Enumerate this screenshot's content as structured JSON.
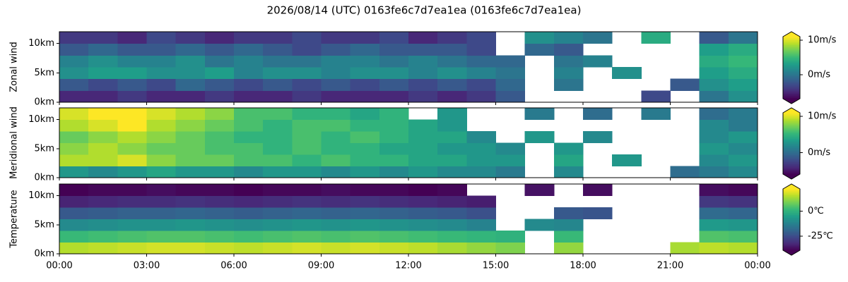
{
  "title": "2026/08/14 (UTC) 0163fe6c7d7ea1ea (0163fe6c7d7ea1ea)",
  "chart_data": [
    {
      "type": "heatmap",
      "ylabel": "Zonal wind",
      "colormap": "viridis",
      "extend": "both",
      "ylim": [
        0,
        12
      ],
      "yticks": [
        {
          "value": 0,
          "label": "0km"
        },
        {
          "value": 5,
          "label": "5km"
        },
        {
          "value": 10,
          "label": "10km"
        }
      ],
      "clim": [
        -7,
        11
      ],
      "cbar_ticks": [
        {
          "value": 0,
          "label": "0m/s"
        },
        {
          "value": 10,
          "label": "10m/s"
        }
      ],
      "values": [
        [
          -5,
          -5,
          -4,
          -5,
          -5,
          -4,
          -5,
          -5,
          -4,
          -5,
          -5,
          -5,
          -4,
          -5,
          -4,
          -2,
          null,
          null,
          null,
          null,
          -3,
          null,
          0,
          2
        ],
        [
          -2,
          -3,
          -2,
          -3,
          -1,
          -2,
          -3,
          -2,
          -3,
          -2,
          -3,
          -2,
          -3,
          -2,
          -3,
          -1,
          null,
          0,
          null,
          null,
          null,
          -2,
          2,
          3
        ],
        [
          2,
          3,
          3,
          2,
          2,
          3,
          1,
          2,
          2,
          1,
          2,
          2,
          1,
          2,
          1,
          0,
          null,
          1,
          null,
          2,
          null,
          null,
          3,
          4
        ],
        [
          1,
          2,
          1,
          1,
          2,
          0,
          1,
          0,
          0,
          1,
          1,
          0,
          1,
          0,
          -1,
          -1,
          null,
          0,
          1,
          null,
          null,
          null,
          4,
          5
        ],
        [
          -2,
          -1,
          -2,
          -2,
          -1,
          -2,
          -1,
          -2,
          -3,
          -2,
          -1,
          -2,
          -2,
          -2,
          -3,
          null,
          -1,
          -2,
          null,
          null,
          null,
          null,
          3,
          4
        ],
        [
          -4,
          -4,
          -5,
          -3,
          -4,
          -5,
          -4,
          -4,
          -3,
          -4,
          -4,
          -3,
          -5,
          -4,
          -3,
          null,
          2,
          1,
          0,
          null,
          4,
          null,
          -2,
          0
        ]
      ]
    },
    {
      "type": "heatmap",
      "ylabel": "Meridional wind",
      "colormap": "viridis",
      "extend": "both",
      "ylim": [
        0,
        12
      ],
      "yticks": [
        {
          "value": 0,
          "label": "0km"
        },
        {
          "value": 5,
          "label": "5km"
        },
        {
          "value": 10,
          "label": "10km"
        }
      ],
      "clim": [
        -6,
        11
      ],
      "cbar_ticks": [
        {
          "value": 0,
          "label": "0m/s"
        },
        {
          "value": 10,
          "label": "10m/s"
        }
      ],
      "values": [
        [
          3,
          2,
          3,
          4,
          3,
          3,
          2,
          3,
          3,
          2,
          3,
          2,
          3,
          2,
          2,
          1,
          null,
          2,
          null,
          null,
          null,
          0,
          1,
          2
        ],
        [
          9,
          9,
          10,
          8,
          7,
          7,
          6,
          6,
          5,
          6,
          5,
          5,
          4,
          4,
          3,
          3,
          null,
          4,
          null,
          3,
          null,
          null,
          2,
          3
        ],
        [
          8,
          9,
          8,
          7,
          7,
          6,
          6,
          5,
          6,
          5,
          5,
          4,
          4,
          3,
          3,
          2,
          null,
          3,
          null,
          null,
          null,
          null,
          3,
          2
        ],
        [
          7,
          8,
          9,
          8,
          7,
          6,
          5,
          5,
          6,
          5,
          6,
          5,
          4,
          4,
          2,
          null,
          3,
          null,
          2,
          null,
          null,
          null,
          2,
          3
        ],
        [
          9,
          10,
          11,
          9,
          8,
          7,
          6,
          5,
          6,
          6,
          5,
          5,
          4,
          3,
          null,
          null,
          null,
          null,
          null,
          null,
          null,
          null,
          2,
          1
        ],
        [
          10,
          11,
          11,
          10,
          9,
          8,
          6,
          6,
          5,
          5,
          4,
          5,
          null,
          3,
          null,
          null,
          1,
          null,
          0,
          null,
          1,
          null,
          0,
          1
        ]
      ]
    },
    {
      "type": "heatmap",
      "ylabel": "Temperature",
      "colormap": "viridis",
      "extend": "both",
      "xlim": [
        0,
        24
      ],
      "xticks": [
        {
          "value": 0,
          "label": "00:00"
        },
        {
          "value": 3,
          "label": "03:00"
        },
        {
          "value": 6,
          "label": "06:00"
        },
        {
          "value": 9,
          "label": "09:00"
        },
        {
          "value": 12,
          "label": "12:00"
        },
        {
          "value": 15,
          "label": "15:00"
        },
        {
          "value": 18,
          "label": "18:00"
        },
        {
          "value": 21,
          "label": "21:00"
        },
        {
          "value": 24,
          "label": "00:00"
        }
      ],
      "ylim": [
        0,
        12
      ],
      "yticks": [
        {
          "value": 0,
          "label": "0km"
        },
        {
          "value": 5,
          "label": "5km"
        },
        {
          "value": 10,
          "label": "10km"
        }
      ],
      "clim": [
        -39,
        22
      ],
      "cbar_ticks": [
        {
          "value": -25,
          "label": "-25℃"
        },
        {
          "value": 0,
          "label": "0℃"
        }
      ],
      "values": [
        [
          15,
          16,
          17,
          18,
          18,
          17,
          16,
          17,
          18,
          17,
          18,
          17,
          16,
          14,
          12,
          10,
          null,
          12,
          null,
          null,
          null,
          14,
          16,
          15
        ],
        [
          2,
          3,
          4,
          5,
          5,
          4,
          3,
          4,
          5,
          4,
          5,
          4,
          3,
          2,
          1,
          0,
          null,
          2,
          null,
          null,
          null,
          null,
          5,
          4
        ],
        [
          -10,
          -9,
          -8,
          -8,
          -7,
          -8,
          -9,
          -8,
          -7,
          -8,
          -7,
          -8,
          -9,
          -10,
          -12,
          null,
          -10,
          -11,
          null,
          null,
          null,
          null,
          -6,
          -7
        ],
        [
          -22,
          -21,
          -20,
          -20,
          -19,
          -20,
          -21,
          -20,
          -19,
          -20,
          -19,
          -20,
          -21,
          -22,
          -24,
          null,
          null,
          -22,
          -23,
          null,
          null,
          null,
          -18,
          -19
        ],
        [
          -33,
          -32,
          -31,
          -31,
          -30,
          -31,
          -32,
          -31,
          -30,
          -31,
          -30,
          -31,
          -32,
          -33,
          -34,
          null,
          null,
          null,
          null,
          null,
          null,
          null,
          -29,
          -30
        ],
        [
          -39,
          -38,
          -38,
          -37,
          -38,
          -38,
          -39,
          -38,
          -38,
          -37,
          -38,
          -38,
          -39,
          -38,
          null,
          null,
          -36,
          null,
          -37,
          null,
          null,
          null,
          -37,
          -38
        ]
      ]
    }
  ]
}
